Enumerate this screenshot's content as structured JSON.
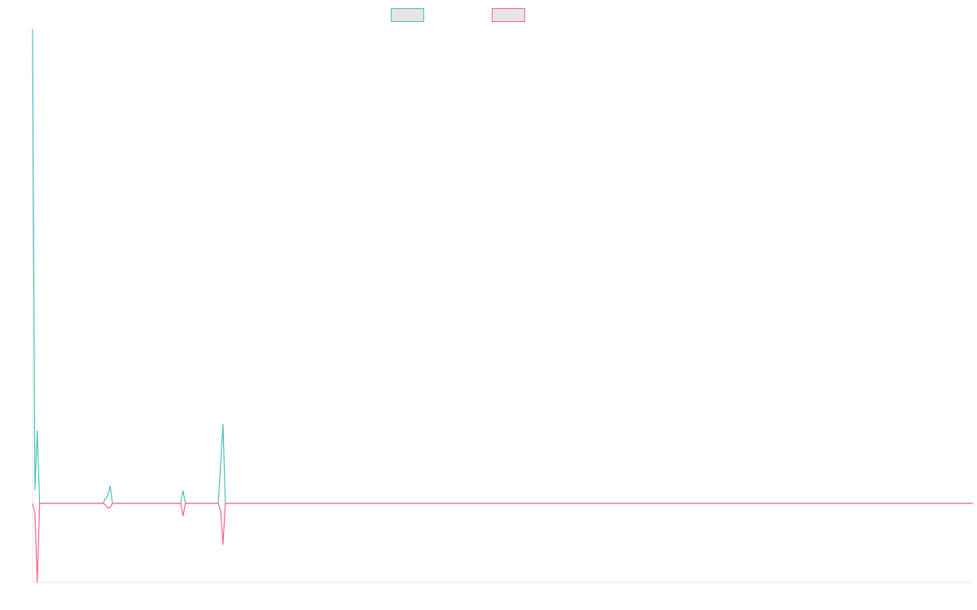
{
  "chart_data": {
    "type": "line",
    "title": "",
    "xlabel": "",
    "ylabel": "",
    "legend_position": "top-center",
    "grid": false,
    "x": [
      0,
      1,
      2,
      3,
      4,
      5,
      6,
      7,
      8,
      9,
      10,
      11,
      12,
      13,
      14,
      15,
      16,
      17,
      18,
      19,
      20,
      21,
      22,
      23,
      24,
      25,
      26,
      27,
      28,
      29,
      30,
      31,
      32,
      33,
      34,
      35,
      36,
      37,
      38,
      39,
      40,
      41,
      42,
      43,
      44,
      45,
      46,
      47,
      48,
      49,
      50,
      51,
      52,
      53,
      54,
      55,
      56,
      57,
      58,
      59,
      60,
      61,
      62,
      63,
      64,
      65,
      66,
      67,
      68,
      69,
      70,
      71,
      72,
      73,
      74,
      75,
      76,
      77,
      78,
      79,
      80,
      81,
      82,
      83,
      84,
      85,
      86,
      87,
      88,
      89,
      90,
      91,
      92,
      93,
      94,
      95,
      96,
      97,
      98,
      99,
      100,
      101,
      102,
      103,
      104,
      105,
      106,
      107,
      108,
      109,
      110,
      111,
      112,
      113,
      114,
      115,
      116,
      117,
      118,
      119,
      120,
      121,
      122,
      123,
      124,
      125,
      126,
      127,
      128,
      129,
      130,
      131,
      132,
      133,
      134,
      135,
      136,
      137,
      138,
      139,
      140,
      141,
      142,
      143,
      144,
      145,
      146,
      147,
      148,
      149,
      150,
      151,
      152,
      153,
      154,
      155,
      156,
      157,
      158,
      159,
      160,
      161,
      162,
      163,
      164,
      165,
      166,
      167,
      168,
      169,
      170,
      171,
      172,
      173,
      174,
      175,
      176,
      177,
      178,
      179,
      180,
      181,
      182,
      183,
      184,
      185,
      186,
      187,
      188,
      189,
      190,
      191,
      192,
      193,
      194,
      195,
      196,
      197,
      198,
      199,
      200,
      201,
      202,
      203,
      204,
      205,
      206,
      207,
      208,
      209,
      210,
      211,
      212,
      213,
      214,
      215,
      216,
      217,
      218,
      219,
      220,
      221,
      222,
      223,
      224,
      225,
      226,
      227,
      228,
      229,
      230,
      231,
      232,
      233,
      234,
      235,
      236,
      237,
      238,
      239,
      240,
      241,
      242,
      243,
      244,
      245,
      246,
      247,
      248,
      249,
      250,
      251,
      252,
      253,
      254,
      255,
      256,
      257,
      258,
      259,
      260,
      261,
      262,
      263,
      264,
      265,
      266,
      267,
      268,
      269,
      270,
      271,
      272,
      273,
      274,
      275,
      276,
      277,
      278,
      279,
      280,
      281,
      282,
      283,
      284,
      285,
      286,
      287,
      288,
      289,
      290,
      291,
      292,
      293,
      294,
      295,
      296,
      297,
      298,
      299,
      300,
      301,
      302,
      303,
      304,
      305,
      306,
      307,
      308,
      309,
      310,
      311,
      312,
      313,
      314,
      315,
      316,
      317,
      318,
      319,
      320,
      321,
      322,
      323,
      324,
      325,
      326,
      327,
      328,
      329,
      330,
      331,
      332,
      333,
      334,
      335,
      336,
      337,
      338,
      339,
      340,
      341,
      342,
      343,
      344,
      345,
      346,
      347,
      348,
      349,
      350,
      351,
      352,
      353,
      354,
      355,
      356,
      357,
      358,
      359,
      360,
      361,
      362,
      363,
      364,
      365,
      366,
      367,
      368,
      369,
      370,
      371,
      372,
      373,
      374,
      375,
      376,
      377,
      378,
      379,
      380,
      381,
      382,
      383,
      384,
      385,
      386,
      387,
      388,
      389,
      390,
      391,
      392,
      393,
      394,
      395,
      396,
      397,
      398,
      399,
      400
    ],
    "ylim": [
      -100,
      600
    ],
    "series": [
      {
        "color": "#4bc0c0",
        "legend_fill": "#e5e5e5",
        "points": [
          [
            0,
            600
          ],
          [
            1,
            17
          ],
          [
            2,
            92
          ],
          [
            3,
            0
          ],
          [
            30,
            0
          ],
          [
            31,
            6
          ],
          [
            32,
            10
          ],
          [
            33,
            22
          ],
          [
            34,
            0
          ],
          [
            63,
            0
          ],
          [
            64,
            16
          ],
          [
            65,
            0
          ],
          [
            79,
            0
          ],
          [
            80,
            50
          ],
          [
            81,
            100
          ],
          [
            82,
            0
          ],
          [
            400,
            0
          ]
        ]
      },
      {
        "color": "#ff6384",
        "legend_fill": "#e5e5e5",
        "points": [
          [
            0,
            0
          ],
          [
            1,
            -12
          ],
          [
            2,
            -100
          ],
          [
            3,
            0
          ],
          [
            30,
            0
          ],
          [
            31,
            -2
          ],
          [
            32,
            -6
          ],
          [
            33,
            -5
          ],
          [
            34,
            0
          ],
          [
            63,
            0
          ],
          [
            64,
            -16
          ],
          [
            65,
            0
          ],
          [
            79,
            0
          ],
          [
            80,
            -10
          ],
          [
            81,
            -52
          ],
          [
            82,
            0
          ],
          [
            400,
            0
          ]
        ]
      }
    ]
  }
}
